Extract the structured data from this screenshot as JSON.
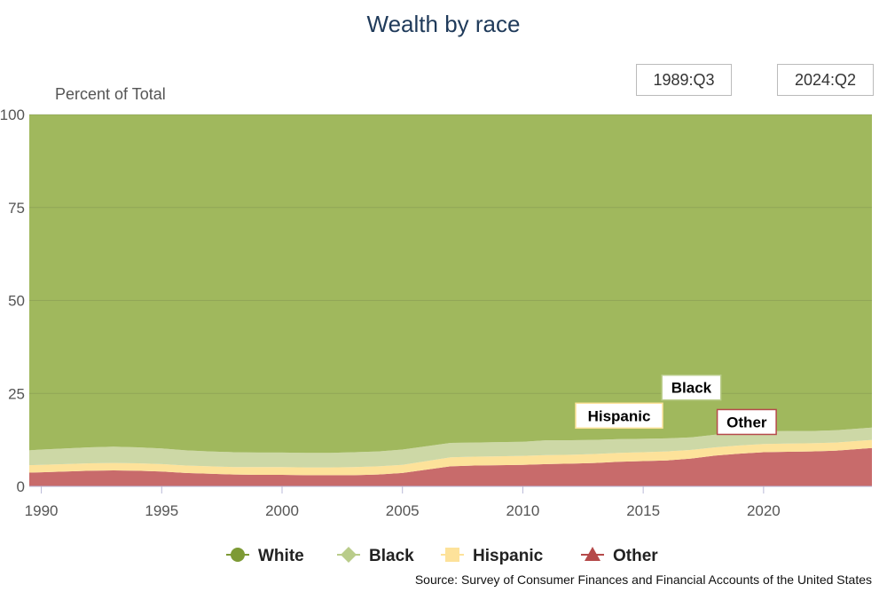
{
  "chart_data": {
    "type": "area",
    "stacked": true,
    "title": "Wealth by race",
    "ylabel": "Percent of Total",
    "ylim": [
      0,
      100
    ],
    "yticks": [
      "0",
      "25",
      "50",
      "75",
      "100"
    ],
    "xlim": [
      1989.5,
      2024.5
    ],
    "xticks": [
      "1990",
      "1995",
      "2000",
      "2005",
      "2010",
      "2015",
      "2020"
    ],
    "range_start": "1989:Q3",
    "range_end": "2024:Q2",
    "x": [
      1989.5,
      1990,
      1991,
      1992,
      1993,
      1994,
      1995,
      1996,
      1997,
      1998,
      1999,
      2000,
      2001,
      2002,
      2003,
      2004,
      2005,
      2006,
      2007,
      2008,
      2009,
      2010,
      2011,
      2012,
      2013,
      2014,
      2015,
      2016,
      2017,
      2018,
      2019,
      2020,
      2021,
      2022,
      2023,
      2024.5
    ],
    "series": [
      {
        "name": "Other",
        "color": "#c86b6b",
        "values": [
          3.7,
          3.8,
          4.0,
          4.2,
          4.3,
          4.2,
          4.0,
          3.6,
          3.4,
          3.2,
          3.1,
          3.1,
          3.0,
          3.0,
          3.0,
          3.2,
          3.6,
          4.5,
          5.4,
          5.6,
          5.7,
          5.8,
          6.0,
          6.1,
          6.3,
          6.6,
          6.8,
          7.0,
          7.5,
          8.3,
          8.8,
          9.2,
          9.3,
          9.4,
          9.6,
          10.3
        ]
      },
      {
        "name": "Hispanic",
        "color": "#fde29a",
        "values": [
          2.0,
          2.0,
          2.0,
          2.0,
          2.0,
          2.0,
          2.0,
          2.0,
          2.0,
          2.0,
          2.1,
          2.1,
          2.1,
          2.1,
          2.2,
          2.2,
          2.2,
          2.3,
          2.4,
          2.4,
          2.4,
          2.4,
          2.4,
          2.4,
          2.4,
          2.4,
          2.4,
          2.4,
          2.3,
          2.2,
          2.2,
          2.2,
          2.2,
          2.2,
          2.2,
          2.2
        ]
      },
      {
        "name": "Black",
        "color": "#cdd8a6",
        "values": [
          4.0,
          4.1,
          4.2,
          4.3,
          4.4,
          4.3,
          4.2,
          4.1,
          4.0,
          4.0,
          3.9,
          3.9,
          3.9,
          3.9,
          4.0,
          4.0,
          4.1,
          4.0,
          3.9,
          3.8,
          3.8,
          3.8,
          4.0,
          3.9,
          3.8,
          3.7,
          3.6,
          3.5,
          3.4,
          3.4,
          3.4,
          3.4,
          3.4,
          3.3,
          3.3,
          3.3
        ]
      },
      {
        "name": "White",
        "color": "#a0b85d",
        "values": [
          90.3,
          90.1,
          89.8,
          89.5,
          89.3,
          89.5,
          89.8,
          90.3,
          90.6,
          90.8,
          90.9,
          90.9,
          91.0,
          91.0,
          90.8,
          90.6,
          90.1,
          89.2,
          88.3,
          88.2,
          88.1,
          88.0,
          87.6,
          87.6,
          87.5,
          87.3,
          87.2,
          87.1,
          86.8,
          86.1,
          85.6,
          85.2,
          85.1,
          85.1,
          84.9,
          84.2
        ]
      }
    ],
    "legend": [
      {
        "name": "White",
        "marker": "circle",
        "color": "#7d9a35"
      },
      {
        "name": "Black",
        "marker": "diamond",
        "color": "#b9cc8a"
      },
      {
        "name": "Hispanic",
        "marker": "square",
        "color": "#fde29a"
      },
      {
        "name": "Other",
        "marker": "triangle",
        "color": "#b54a4a"
      }
    ],
    "annotations": [
      {
        "text": "Black",
        "at_year": 2017
      },
      {
        "text": "Hispanic",
        "at_year": 2014
      },
      {
        "text": "Other",
        "at_year": 2019.3
      }
    ],
    "source": "Source: Survey of Consumer Finances and Financial Accounts of the United States"
  }
}
